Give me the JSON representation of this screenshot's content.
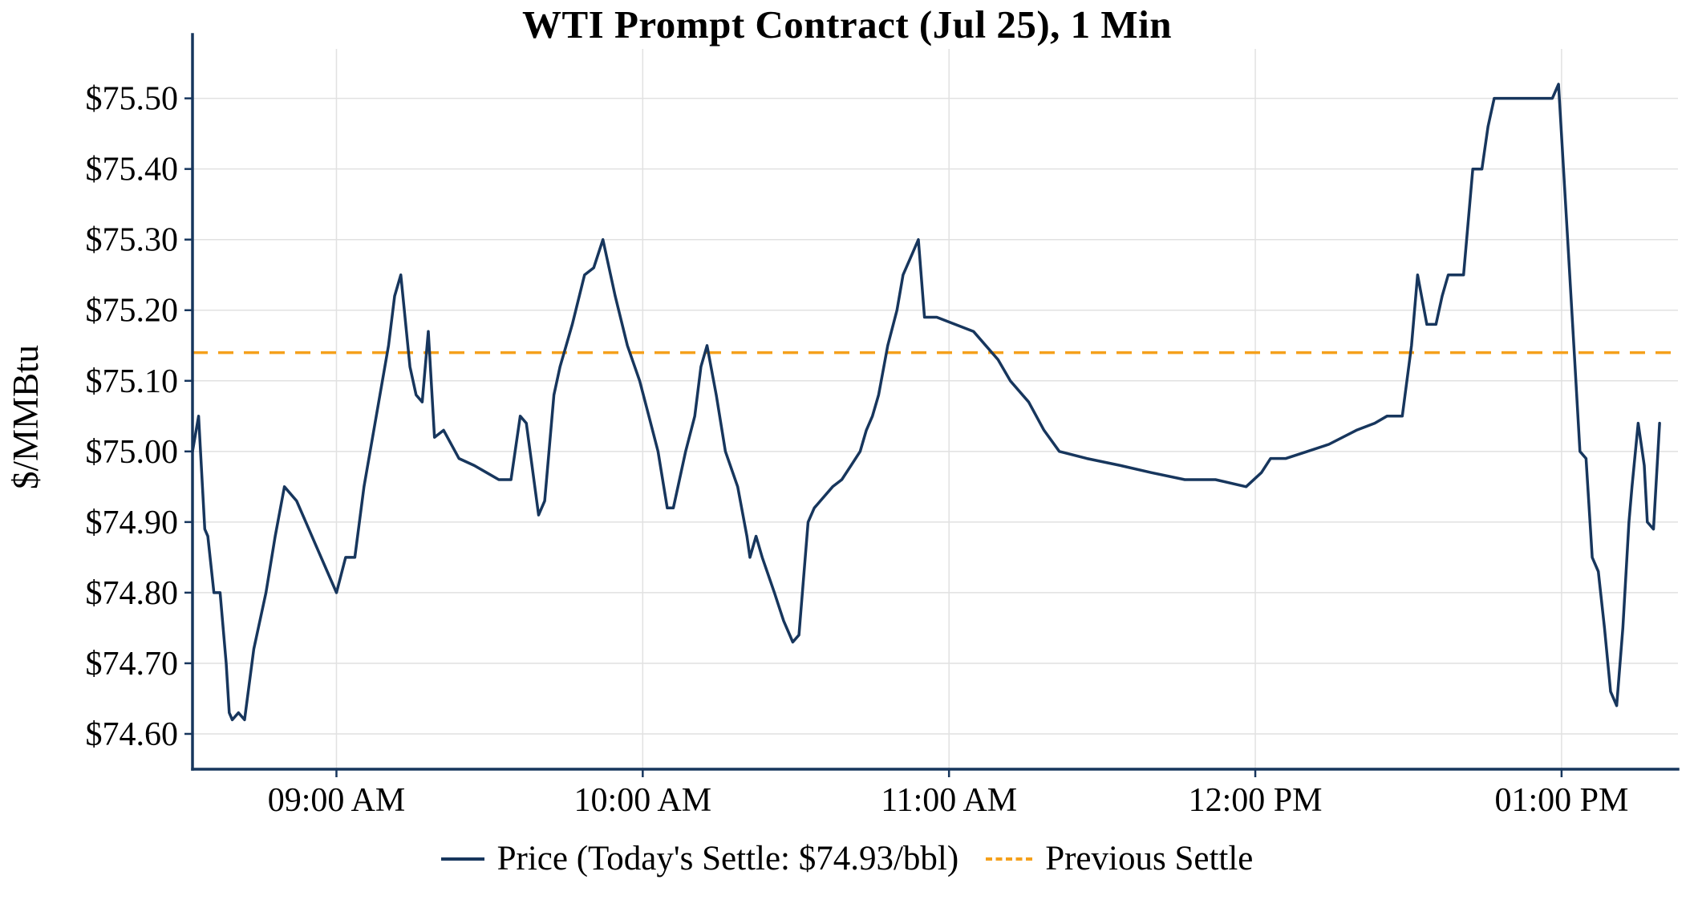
{
  "chart_data": {
    "type": "line",
    "title": "WTI Prompt Contract (Jul 25), 1 Min",
    "xlabel": "",
    "ylabel": "$/MMBtu",
    "x_unit": "decimal_hours",
    "xlim": [
      8.53,
      13.38
    ],
    "ylim": [
      74.55,
      75.57
    ],
    "grid": true,
    "legend_position": "bottom",
    "x_ticks": [
      {
        "value": 9,
        "label": "09:00 AM"
      },
      {
        "value": 10,
        "label": "10:00 AM"
      },
      {
        "value": 11,
        "label": "11:00 AM"
      },
      {
        "value": 12,
        "label": "12:00 PM"
      },
      {
        "value": 13,
        "label": "01:00 PM"
      }
    ],
    "y_ticks": [
      {
        "value": 74.6,
        "label": "$74.60"
      },
      {
        "value": 74.7,
        "label": "$74.70"
      },
      {
        "value": 74.8,
        "label": "$74.80"
      },
      {
        "value": 74.9,
        "label": "$74.90"
      },
      {
        "value": 75.0,
        "label": "$75.00"
      },
      {
        "value": 75.1,
        "label": "$75.10"
      },
      {
        "value": 75.2,
        "label": "$75.20"
      },
      {
        "value": 75.3,
        "label": "$75.30"
      },
      {
        "value": 75.4,
        "label": "$75.40"
      },
      {
        "value": 75.5,
        "label": "$75.50"
      }
    ],
    "series": [
      {
        "name": "Price (Today's Settle: $74.93/bbl)",
        "color": "#17365d",
        "style": "solid",
        "points": [
          [
            8.53,
            75.0
          ],
          [
            8.55,
            75.05
          ],
          [
            8.57,
            74.89
          ],
          [
            8.58,
            74.88
          ],
          [
            8.6,
            74.8
          ],
          [
            8.62,
            74.8
          ],
          [
            8.64,
            74.7
          ],
          [
            8.65,
            74.63
          ],
          [
            8.66,
            74.62
          ],
          [
            8.68,
            74.63
          ],
          [
            8.7,
            74.62
          ],
          [
            8.73,
            74.72
          ],
          [
            8.77,
            74.8
          ],
          [
            8.8,
            74.88
          ],
          [
            8.83,
            74.95
          ],
          [
            8.87,
            74.93
          ],
          [
            8.9,
            74.9
          ],
          [
            8.93,
            74.87
          ],
          [
            8.97,
            74.83
          ],
          [
            9.0,
            74.8
          ],
          [
            9.03,
            74.85
          ],
          [
            9.06,
            74.85
          ],
          [
            9.09,
            74.95
          ],
          [
            9.13,
            75.05
          ],
          [
            9.17,
            75.15
          ],
          [
            9.19,
            75.22
          ],
          [
            9.21,
            75.25
          ],
          [
            9.24,
            75.12
          ],
          [
            9.26,
            75.08
          ],
          [
            9.28,
            75.07
          ],
          [
            9.3,
            75.17
          ],
          [
            9.32,
            75.02
          ],
          [
            9.35,
            75.03
          ],
          [
            9.4,
            74.99
          ],
          [
            9.45,
            74.98
          ],
          [
            9.49,
            74.97
          ],
          [
            9.53,
            74.96
          ],
          [
            9.57,
            74.96
          ],
          [
            9.6,
            75.05
          ],
          [
            9.62,
            75.04
          ],
          [
            9.66,
            74.91
          ],
          [
            9.68,
            74.93
          ],
          [
            9.71,
            75.08
          ],
          [
            9.73,
            75.12
          ],
          [
            9.75,
            75.15
          ],
          [
            9.77,
            75.18
          ],
          [
            9.81,
            75.25
          ],
          [
            9.84,
            75.26
          ],
          [
            9.87,
            75.3
          ],
          [
            9.91,
            75.22
          ],
          [
            9.95,
            75.15
          ],
          [
            9.99,
            75.1
          ],
          [
            10.02,
            75.05
          ],
          [
            10.05,
            75.0
          ],
          [
            10.08,
            74.92
          ],
          [
            10.1,
            74.92
          ],
          [
            10.14,
            75.0
          ],
          [
            10.17,
            75.05
          ],
          [
            10.19,
            75.12
          ],
          [
            10.21,
            75.15
          ],
          [
            10.24,
            75.08
          ],
          [
            10.27,
            75.0
          ],
          [
            10.31,
            74.95
          ],
          [
            10.34,
            74.88
          ],
          [
            10.35,
            74.85
          ],
          [
            10.37,
            74.88
          ],
          [
            10.39,
            74.85
          ],
          [
            10.43,
            74.8
          ],
          [
            10.46,
            74.76
          ],
          [
            10.49,
            74.73
          ],
          [
            10.51,
            74.74
          ],
          [
            10.54,
            74.9
          ],
          [
            10.56,
            74.92
          ],
          [
            10.58,
            74.93
          ],
          [
            10.62,
            74.95
          ],
          [
            10.65,
            74.96
          ],
          [
            10.68,
            74.98
          ],
          [
            10.71,
            75.0
          ],
          [
            10.73,
            75.03
          ],
          [
            10.75,
            75.05
          ],
          [
            10.77,
            75.08
          ],
          [
            10.8,
            75.15
          ],
          [
            10.83,
            75.2
          ],
          [
            10.85,
            75.25
          ],
          [
            10.88,
            75.28
          ],
          [
            10.9,
            75.3
          ],
          [
            10.92,
            75.19
          ],
          [
            10.96,
            75.19
          ],
          [
            11.02,
            75.18
          ],
          [
            11.08,
            75.17
          ],
          [
            11.12,
            75.15
          ],
          [
            11.16,
            75.13
          ],
          [
            11.2,
            75.1
          ],
          [
            11.26,
            75.07
          ],
          [
            11.31,
            75.03
          ],
          [
            11.36,
            75.0
          ],
          [
            11.45,
            74.99
          ],
          [
            11.56,
            74.98
          ],
          [
            11.66,
            74.97
          ],
          [
            11.77,
            74.96
          ],
          [
            11.87,
            74.96
          ],
          [
            11.97,
            74.95
          ],
          [
            12.02,
            74.97
          ],
          [
            12.05,
            74.99
          ],
          [
            12.1,
            74.99
          ],
          [
            12.17,
            75.0
          ],
          [
            12.24,
            75.01
          ],
          [
            12.33,
            75.03
          ],
          [
            12.39,
            75.04
          ],
          [
            12.43,
            75.05
          ],
          [
            12.48,
            75.05
          ],
          [
            12.51,
            75.15
          ],
          [
            12.53,
            75.25
          ],
          [
            12.56,
            75.18
          ],
          [
            12.59,
            75.18
          ],
          [
            12.61,
            75.22
          ],
          [
            12.63,
            75.25
          ],
          [
            12.68,
            75.25
          ],
          [
            12.71,
            75.4
          ],
          [
            12.74,
            75.4
          ],
          [
            12.76,
            75.46
          ],
          [
            12.78,
            75.5
          ],
          [
            12.85,
            75.5
          ],
          [
            12.92,
            75.5
          ],
          [
            12.97,
            75.5
          ],
          [
            12.99,
            75.52
          ],
          [
            13.02,
            75.3
          ],
          [
            13.04,
            75.15
          ],
          [
            13.06,
            75.0
          ],
          [
            13.08,
            74.99
          ],
          [
            13.1,
            74.85
          ],
          [
            13.12,
            74.83
          ],
          [
            13.14,
            74.75
          ],
          [
            13.16,
            74.66
          ],
          [
            13.18,
            74.64
          ],
          [
            13.2,
            74.75
          ],
          [
            13.22,
            74.9
          ],
          [
            13.23,
            74.95
          ],
          [
            13.25,
            75.04
          ],
          [
            13.27,
            74.98
          ],
          [
            13.28,
            74.9
          ],
          [
            13.3,
            74.89
          ],
          [
            13.32,
            75.04
          ]
        ]
      },
      {
        "name": "Previous Settle",
        "color": "#f5a01b",
        "style": "dashed",
        "value": 75.14
      }
    ]
  },
  "legend": {
    "price_label": "Price (Today's Settle: $74.93/bbl)",
    "settle_label": "Previous Settle"
  }
}
